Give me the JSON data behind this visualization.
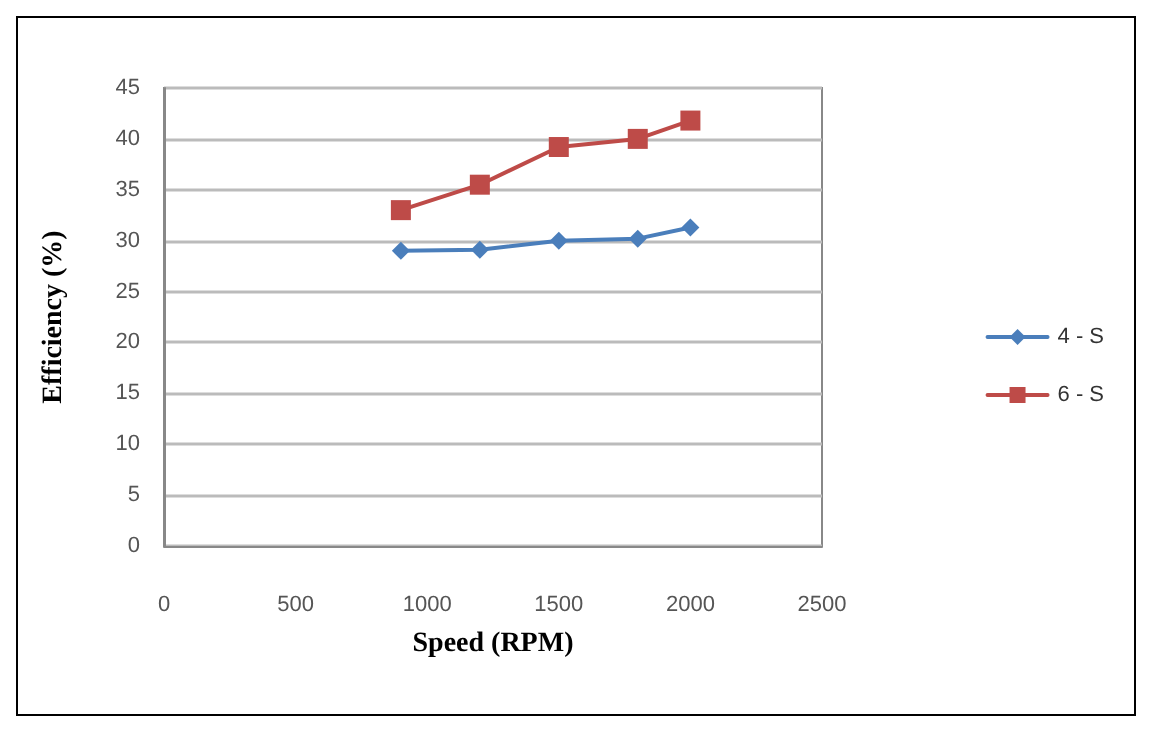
{
  "chart_data": {
    "type": "line",
    "xlabel": "Speed (RPM)",
    "ylabel": "Efficiency (%)",
    "xlim": [
      0,
      2500
    ],
    "xticks": [
      0,
      500,
      1000,
      1500,
      2000,
      2500
    ],
    "ylim": [
      0,
      45
    ],
    "yticks": [
      0,
      5,
      10,
      15,
      20,
      25,
      30,
      35,
      40,
      45
    ],
    "grid": "y",
    "legend": "right",
    "line_style": "solid",
    "series": [
      {
        "name": "4 - S",
        "color": "#4a7ebb",
        "marker": "diamond",
        "x": [
          900,
          1200,
          1500,
          1800,
          2000
        ],
        "values": [
          29,
          29.1,
          30,
          30.2,
          31.3
        ]
      },
      {
        "name": "6 - S",
        "color": "#be4b48",
        "marker": "square",
        "x": [
          900,
          1200,
          1500,
          1800,
          2000
        ],
        "values": [
          33,
          35.5,
          39.2,
          40,
          41.8
        ]
      }
    ]
  }
}
